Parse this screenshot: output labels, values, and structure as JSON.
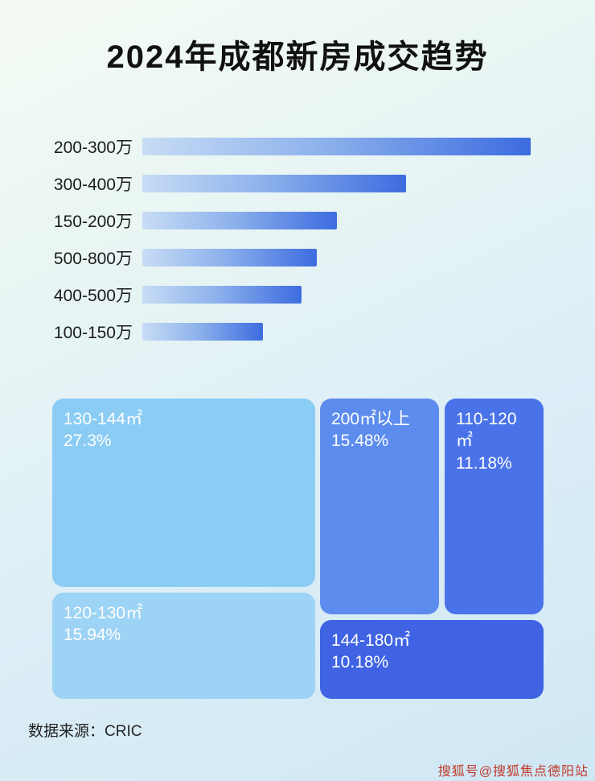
{
  "page": {
    "title": "2024年成都新房成交趋势",
    "source_label": "数据来源：CRIC",
    "watermark": "搜狐号@搜狐焦点德阳站"
  },
  "chart_data": [
    {
      "type": "bar",
      "orientation": "horizontal",
      "categories": [
        "200-300万",
        "300-400万",
        "150-200万",
        "500-800万",
        "400-500万",
        "100-150万"
      ],
      "values": [
        100,
        68,
        50,
        45,
        41,
        31
      ],
      "value_note": "relative bar length, percent of longest bar (no axis labels shown)",
      "bar_gradient": [
        "#c7dcf5",
        "#3d6ce0"
      ],
      "legend": "none",
      "grid": false
    },
    {
      "type": "treemap",
      "items": [
        {
          "label": "130-144㎡",
          "value": "27.3%",
          "color": "#8bccf4"
        },
        {
          "label": "120-130㎡",
          "value": "15.94%",
          "color": "#9dd3f4"
        },
        {
          "label": "200㎡以上",
          "value": "15.48%",
          "color": "#5c8cee"
        },
        {
          "label": "110-120㎡",
          "value": "11.18%",
          "color": "#4a73e9"
        },
        {
          "label": "144-180㎡",
          "value": "10.18%",
          "color": "#3f63e3"
        }
      ]
    }
  ]
}
